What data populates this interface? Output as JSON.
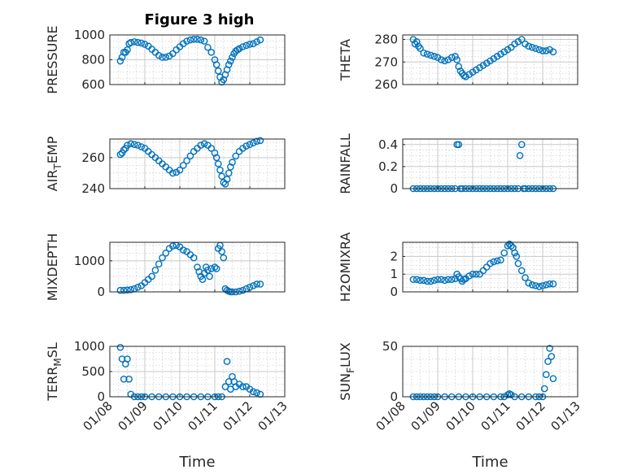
{
  "figure": {
    "title": "Figure 3 high",
    "marker_color": "#0072BD",
    "x_tick_labels": [
      "01/08",
      "01/09",
      "01/10",
      "01/11",
      "01/12",
      "01/13"
    ],
    "xlabel": "Time"
  },
  "chart_data": [
    {
      "type": "scatter",
      "title": "Figure 3 high",
      "ylabel": "PRESSURE",
      "ylim": [
        600,
        1000
      ],
      "yticks": [
        600,
        800,
        1000
      ],
      "grid": true,
      "xlim": [
        "01/08",
        "01/13"
      ],
      "x": [
        8.3,
        8.35,
        8.4,
        8.45,
        8.5,
        8.55,
        8.6,
        8.7,
        8.8,
        8.9,
        9.0,
        9.1,
        9.2,
        9.3,
        9.4,
        9.5,
        9.6,
        9.7,
        9.8,
        9.9,
        10.0,
        10.1,
        10.2,
        10.3,
        10.4,
        10.5,
        10.6,
        10.7,
        10.8,
        10.9,
        11.0,
        11.05,
        11.1,
        11.15,
        11.2,
        11.25,
        11.3,
        11.35,
        11.4,
        11.45,
        11.5,
        11.55,
        11.6,
        11.65,
        11.7,
        11.8,
        11.9,
        12.0,
        12.1,
        12.2,
        12.3
      ],
      "y": [
        790,
        820,
        860,
        860,
        880,
        930,
        940,
        945,
        940,
        935,
        925,
        910,
        885,
        860,
        835,
        820,
        820,
        830,
        850,
        880,
        905,
        930,
        950,
        960,
        965,
        965,
        960,
        950,
        900,
        860,
        800,
        760,
        710,
        660,
        620,
        640,
        680,
        720,
        760,
        790,
        820,
        850,
        870,
        880,
        890,
        905,
        915,
        925,
        930,
        945,
        960
      ]
    },
    {
      "type": "scatter",
      "ylabel": "THETA",
      "ylim": [
        260,
        282
      ],
      "yticks": [
        260,
        270,
        280
      ],
      "grid": true,
      "x": [
        8.3,
        8.35,
        8.4,
        8.45,
        8.5,
        8.6,
        8.7,
        8.8,
        8.9,
        9.0,
        9.1,
        9.2,
        9.3,
        9.4,
        9.5,
        9.55,
        9.6,
        9.65,
        9.7,
        9.75,
        9.8,
        9.9,
        10.0,
        10.1,
        10.2,
        10.3,
        10.4,
        10.5,
        10.6,
        10.7,
        10.8,
        10.9,
        11.0,
        11.1,
        11.2,
        11.3,
        11.4,
        11.5,
        11.6,
        11.7,
        11.8,
        11.9,
        12.0,
        12.1,
        12.2,
        12.3
      ],
      "y": [
        280,
        278,
        279,
        277,
        276,
        274,
        273.5,
        273,
        272.5,
        272,
        271,
        270.5,
        271,
        272,
        272.5,
        271,
        268,
        266,
        265,
        264,
        263.5,
        264.5,
        265.5,
        266.5,
        267.5,
        268.5,
        269.5,
        270.5,
        271.5,
        272.5,
        273.5,
        274.5,
        275.5,
        276.5,
        278,
        279,
        280,
        278,
        277,
        276.5,
        276,
        275.5,
        275,
        275,
        275.5,
        274.5
      ]
    },
    {
      "type": "scatter",
      "ylabel": "AIR_TEMP",
      "ylim": [
        240,
        272
      ],
      "yticks": [
        240,
        260
      ],
      "grid": true,
      "x": [
        8.3,
        8.35,
        8.4,
        8.45,
        8.5,
        8.6,
        8.7,
        8.8,
        8.9,
        9.0,
        9.1,
        9.2,
        9.3,
        9.4,
        9.5,
        9.6,
        9.7,
        9.8,
        9.9,
        10.0,
        10.1,
        10.2,
        10.3,
        10.4,
        10.5,
        10.6,
        10.7,
        10.8,
        10.9,
        11.0,
        11.05,
        11.1,
        11.15,
        11.2,
        11.25,
        11.3,
        11.35,
        11.4,
        11.45,
        11.5,
        11.6,
        11.7,
        11.8,
        11.9,
        12.0,
        12.1,
        12.2,
        12.3
      ],
      "y": [
        262,
        263,
        265,
        266,
        268,
        269,
        268.5,
        268,
        267,
        266,
        264,
        262,
        260,
        258,
        256,
        254,
        252,
        250,
        250.5,
        252,
        255,
        258,
        261,
        264,
        266,
        268,
        269,
        268,
        266,
        263,
        260,
        256,
        252,
        248,
        244,
        243,
        246,
        250,
        254,
        257,
        261,
        264,
        266,
        267.5,
        268.5,
        269.5,
        270.5,
        271
      ]
    },
    {
      "type": "scatter",
      "ylabel": "RAINFALL",
      "ylim": [
        0,
        0.45
      ],
      "yticks": [
        0,
        0.2,
        0.4
      ],
      "grid": true,
      "x": [
        8.3,
        8.4,
        8.5,
        8.6,
        8.7,
        8.8,
        8.9,
        9.0,
        9.1,
        9.2,
        9.3,
        9.4,
        9.5,
        9.55,
        9.6,
        9.65,
        9.7,
        9.8,
        9.9,
        10.0,
        10.1,
        10.2,
        10.3,
        10.4,
        10.5,
        10.6,
        10.7,
        10.8,
        10.9,
        11.0,
        11.1,
        11.2,
        11.3,
        11.35,
        11.4,
        11.45,
        11.5,
        11.6,
        11.7,
        11.8,
        11.9,
        12.0,
        12.1,
        12.2,
        12.3
      ],
      "y": [
        0,
        0,
        0,
        0,
        0,
        0,
        0,
        0,
        0,
        0,
        0,
        0,
        0,
        0.4,
        0.4,
        0,
        0,
        0,
        0,
        0,
        0,
        0,
        0,
        0,
        0,
        0,
        0,
        0,
        0,
        0,
        0,
        0,
        0,
        0.3,
        0.4,
        0,
        0,
        0,
        0,
        0,
        0,
        0,
        0,
        0,
        0
      ]
    },
    {
      "type": "scatter",
      "ylabel": "MIXDEPTH",
      "ylim": [
        0,
        1600
      ],
      "yticks": [
        0,
        1000
      ],
      "grid": true,
      "x": [
        8.3,
        8.4,
        8.5,
        8.6,
        8.7,
        8.8,
        8.9,
        9.0,
        9.1,
        9.2,
        9.3,
        9.4,
        9.5,
        9.6,
        9.7,
        9.8,
        9.9,
        10.0,
        10.1,
        10.2,
        10.3,
        10.4,
        10.5,
        10.55,
        10.6,
        10.65,
        10.7,
        10.75,
        10.8,
        10.85,
        10.9,
        11.0,
        11.05,
        11.1,
        11.15,
        11.2,
        11.25,
        11.3,
        11.35,
        11.4,
        11.45,
        11.5,
        11.6,
        11.7,
        11.8,
        11.9,
        12.0,
        12.1,
        12.2,
        12.3
      ],
      "y": [
        50,
        50,
        60,
        70,
        100,
        150,
        200,
        300,
        400,
        500,
        700,
        900,
        1100,
        1250,
        1400,
        1480,
        1500,
        1450,
        1350,
        1300,
        1200,
        1100,
        800,
        650,
        500,
        400,
        600,
        800,
        700,
        500,
        750,
        800,
        750,
        1400,
        1500,
        1300,
        1100,
        100,
        50,
        20,
        0,
        0,
        0,
        20,
        50,
        100,
        150,
        200,
        250,
        250
      ]
    },
    {
      "type": "scatter",
      "ylabel": "H2OMIXRA",
      "ylim": [
        0,
        2.8
      ],
      "yticks": [
        0,
        1,
        2
      ],
      "grid": true,
      "x": [
        8.3,
        8.4,
        8.5,
        8.6,
        8.7,
        8.8,
        8.9,
        9.0,
        9.1,
        9.2,
        9.3,
        9.4,
        9.5,
        9.55,
        9.6,
        9.65,
        9.7,
        9.75,
        9.8,
        9.9,
        10.0,
        10.1,
        10.2,
        10.3,
        10.4,
        10.5,
        10.6,
        10.7,
        10.8,
        10.9,
        11.0,
        11.05,
        11.1,
        11.15,
        11.2,
        11.25,
        11.3,
        11.4,
        11.5,
        11.6,
        11.7,
        11.8,
        11.9,
        12.0,
        12.1,
        12.2,
        12.3
      ],
      "y": [
        0.7,
        0.7,
        0.65,
        0.65,
        0.6,
        0.6,
        0.65,
        0.7,
        0.7,
        0.65,
        0.7,
        0.7,
        0.75,
        1.0,
        0.85,
        0.75,
        0.6,
        0.7,
        0.75,
        0.9,
        1.0,
        1.0,
        1.0,
        1.2,
        1.4,
        1.6,
        1.7,
        1.75,
        1.8,
        2.2,
        2.6,
        2.7,
        2.6,
        2.5,
        2.2,
        2.0,
        1.6,
        1.2,
        0.8,
        0.5,
        0.4,
        0.35,
        0.3,
        0.35,
        0.4,
        0.45,
        0.45
      ]
    },
    {
      "type": "scatter",
      "ylabel": "TERR_MSL",
      "ylim": [
        0,
        1000
      ],
      "yticks": [
        0,
        500,
        1000
      ],
      "grid": true,
      "x": [
        8.3,
        8.35,
        8.4,
        8.45,
        8.5,
        8.55,
        8.6,
        8.7,
        8.8,
        8.9,
        9.0,
        9.2,
        9.4,
        9.6,
        9.8,
        10.0,
        10.2,
        10.4,
        10.6,
        10.8,
        11.0,
        11.1,
        11.2,
        11.3,
        11.35,
        11.4,
        11.45,
        11.5,
        11.55,
        11.6,
        11.7,
        11.8,
        11.9,
        12.0,
        12.1,
        12.2,
        12.3
      ],
      "y": [
        980,
        750,
        350,
        650,
        750,
        350,
        50,
        0,
        0,
        0,
        0,
        0,
        0,
        0,
        0,
        0,
        0,
        0,
        0,
        0,
        0,
        0,
        0,
        200,
        700,
        300,
        150,
        400,
        300,
        200,
        250,
        200,
        200,
        150,
        100,
        80,
        50
      ]
    },
    {
      "type": "scatter",
      "ylabel": "SUN_FLUX",
      "ylim": [
        0,
        50
      ],
      "yticks": [
        0,
        50
      ],
      "grid": true,
      "x": [
        8.3,
        8.4,
        8.5,
        8.6,
        8.7,
        8.8,
        8.9,
        9.0,
        9.2,
        9.4,
        9.6,
        9.8,
        10.0,
        10.2,
        10.4,
        10.6,
        10.8,
        10.9,
        11.0,
        11.05,
        11.1,
        11.2,
        11.4,
        11.6,
        11.8,
        11.9,
        12.0,
        12.05,
        12.1,
        12.15,
        12.2,
        12.25,
        12.3
      ],
      "y": [
        0,
        0,
        0,
        0,
        0,
        0,
        0,
        0,
        0,
        0,
        0,
        0,
        0,
        0,
        0,
        0,
        0,
        0,
        2,
        3,
        2,
        0,
        0,
        0,
        0,
        0,
        0,
        8,
        22,
        35,
        48,
        40,
        18
      ]
    }
  ]
}
